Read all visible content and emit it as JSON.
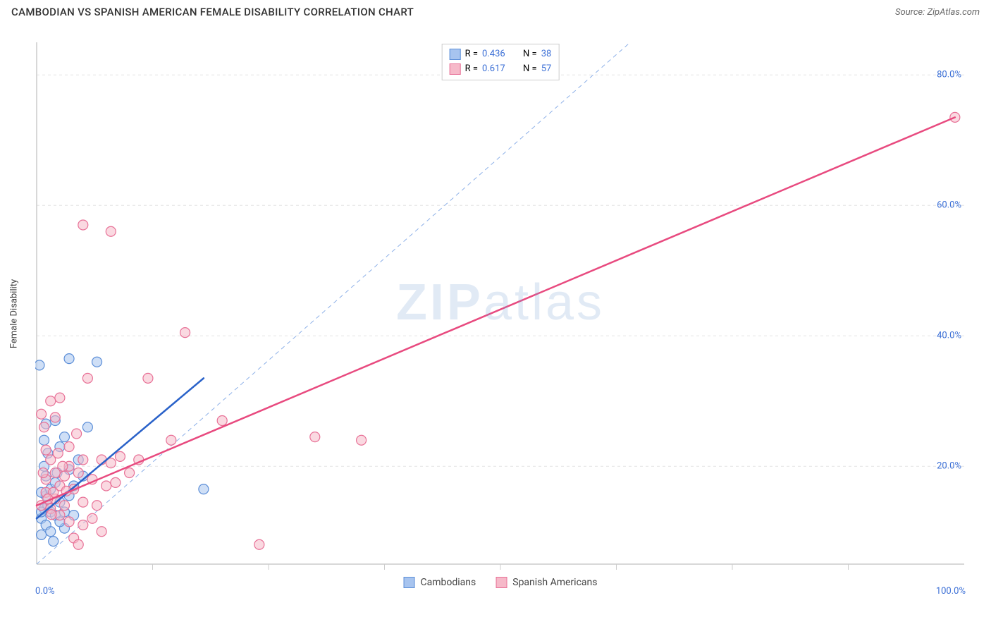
{
  "header": {
    "title": "CAMBODIAN VS SPANISH AMERICAN FEMALE DISABILITY CORRELATION CHART",
    "source_prefix": "Source: ",
    "source_name": "ZipAtlas.com"
  },
  "watermark": {
    "zip": "ZIP",
    "atlas": "atlas"
  },
  "chart": {
    "type": "scatter",
    "ylabel": "Female Disability",
    "xlim": [
      0,
      100
    ],
    "ylim": [
      5,
      85
    ],
    "x_min_label": "0.0%",
    "x_max_label": "100.0%",
    "y_ticks": [
      20,
      40,
      60,
      80
    ],
    "y_tick_labels": [
      "20.0%",
      "40.0%",
      "60.0%",
      "80.0%"
    ],
    "x_minor_ticks": [
      12.5,
      25,
      37.5,
      50,
      62.5,
      75,
      87.5
    ],
    "background_color": "#ffffff",
    "grid_color": "#e4e4e4",
    "grid_dash": "4,4",
    "axis_color": "#cccccc",
    "marker_radius": 7,
    "marker_opacity": 0.55,
    "reference_line": {
      "x1": 0,
      "y1": 5,
      "x2": 64,
      "y2": 85,
      "color": "#8db0e8",
      "dash": "6,5",
      "width": 1
    },
    "series": [
      {
        "name": "Cambodians",
        "fill": "#a7c4ef",
        "stroke": "#5d8fd8",
        "trend": {
          "x1": 0,
          "y1": 12,
          "x2": 18,
          "y2": 33.5,
          "color": "#2a62c9",
          "width": 2.5
        },
        "stats": {
          "R": "0.436",
          "N": "38"
        },
        "points": [
          [
            0.5,
            12
          ],
          [
            0.8,
            13.5
          ],
          [
            1.0,
            11
          ],
          [
            1.2,
            14
          ],
          [
            1.0,
            15.5
          ],
          [
            1.5,
            13
          ],
          [
            1.5,
            16.5
          ],
          [
            2.0,
            12.5
          ],
          [
            2.0,
            17.5
          ],
          [
            1.0,
            18.5
          ],
          [
            0.8,
            20
          ],
          [
            2.5,
            14.5
          ],
          [
            2.5,
            23
          ],
          [
            3.0,
            13
          ],
          [
            3.0,
            24.5
          ],
          [
            0.5,
            9.5
          ],
          [
            3.5,
            15.5
          ],
          [
            0.3,
            35.5
          ],
          [
            4.0,
            17
          ],
          [
            3.0,
            10.5
          ],
          [
            4.5,
            21
          ],
          [
            3.5,
            36.5
          ],
          [
            5.0,
            18.5
          ],
          [
            5.5,
            26
          ],
          [
            6.5,
            36
          ],
          [
            2.0,
            27
          ],
          [
            1.5,
            10
          ],
          [
            4.0,
            12.5
          ],
          [
            1.8,
            8.5
          ],
          [
            0.5,
            16
          ],
          [
            2.2,
            19
          ],
          [
            1.2,
            22
          ],
          [
            0.8,
            24
          ],
          [
            0.5,
            13
          ],
          [
            3.5,
            19.5
          ],
          [
            2.5,
            11.5
          ],
          [
            18.0,
            16.5
          ],
          [
            1.0,
            26.5
          ]
        ]
      },
      {
        "name": "Spanish Americans",
        "fill": "#f6b9c9",
        "stroke": "#e87197",
        "trend": {
          "x1": 0,
          "y1": 14,
          "x2": 99,
          "y2": 73.5,
          "color": "#e84a7f",
          "width": 2.5
        },
        "stats": {
          "R": "0.617",
          "N": "57"
        },
        "points": [
          [
            0.5,
            14
          ],
          [
            1.0,
            16
          ],
          [
            1.5,
            13.5
          ],
          [
            1.0,
            18
          ],
          [
            2.0,
            15
          ],
          [
            2.0,
            19
          ],
          [
            1.5,
            21
          ],
          [
            2.5,
            17
          ],
          [
            0.8,
            26
          ],
          [
            3.0,
            18.5
          ],
          [
            3.0,
            14
          ],
          [
            3.5,
            20
          ],
          [
            0.5,
            28
          ],
          [
            3.5,
            23
          ],
          [
            4.0,
            16.5
          ],
          [
            2.0,
            27.5
          ],
          [
            4.5,
            19
          ],
          [
            1.5,
            30
          ],
          [
            5.0,
            21
          ],
          [
            5.0,
            14.5
          ],
          [
            2.5,
            30.5
          ],
          [
            6.0,
            18
          ],
          [
            6.0,
            12
          ],
          [
            1.0,
            22.5
          ],
          [
            7.0,
            21
          ],
          [
            7.5,
            17
          ],
          [
            5.5,
            33.5
          ],
          [
            8.0,
            20.5
          ],
          [
            8.5,
            17.5
          ],
          [
            5.0,
            57
          ],
          [
            9.0,
            21.5
          ],
          [
            10.0,
            19
          ],
          [
            11.0,
            21
          ],
          [
            12.0,
            33.5
          ],
          [
            8.0,
            56
          ],
          [
            4.0,
            9
          ],
          [
            14.5,
            24
          ],
          [
            5.0,
            11
          ],
          [
            16.0,
            40.5
          ],
          [
            4.5,
            8
          ],
          [
            20.0,
            27
          ],
          [
            6.5,
            14
          ],
          [
            24.0,
            8
          ],
          [
            3.5,
            11.5
          ],
          [
            30.0,
            24.5
          ],
          [
            7.0,
            10
          ],
          [
            35.0,
            24
          ],
          [
            2.5,
            12.5
          ],
          [
            99.0,
            73.5
          ],
          [
            1.8,
            16
          ],
          [
            0.7,
            19
          ],
          [
            2.3,
            22
          ],
          [
            1.2,
            15
          ],
          [
            4.3,
            25
          ],
          [
            3.2,
            16.2
          ],
          [
            1.6,
            12.6
          ],
          [
            2.8,
            20.0
          ]
        ]
      }
    ]
  },
  "stats_labels": {
    "R": "R =",
    "N": "N ="
  },
  "colors": {
    "text_value": "#3b6fd6"
  }
}
